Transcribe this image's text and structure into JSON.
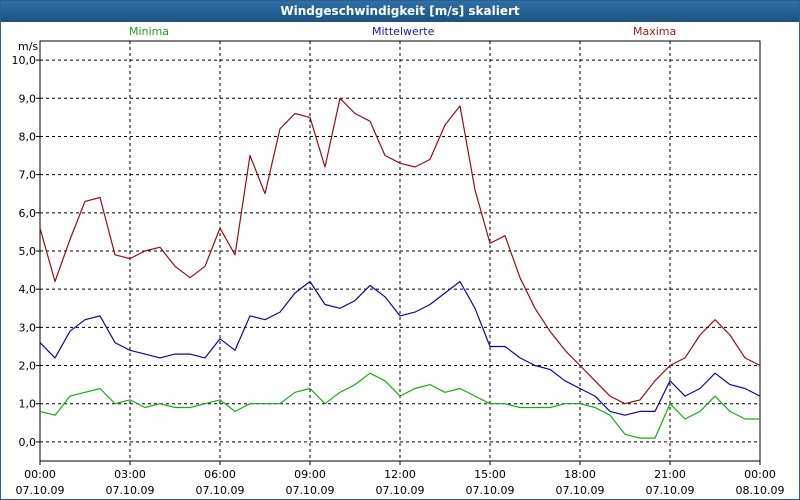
{
  "title": "Windgeschwindigkeit [m/s] skaliert",
  "colors": {
    "min": "#11b011",
    "avg": "#0a0aa0",
    "max": "#9a0e0e",
    "grid": "#000000",
    "title_bg": "#1c527f"
  },
  "chart_data": {
    "type": "line",
    "title": "Windgeschwindigkeit [m/s] skaliert",
    "ylabel": "m/s",
    "xlabel": "",
    "ylim": [
      -0.5,
      10.5
    ],
    "xlim": [
      0,
      24
    ],
    "grid": true,
    "legend": [
      "Minima",
      "Mittelwerte",
      "Maxima"
    ],
    "legend_position": "top",
    "y_ticks": [
      "0,0",
      "1,0",
      "2,0",
      "3,0",
      "4,0",
      "5,0",
      "6,0",
      "7,0",
      "8,0",
      "9,0",
      "10,0"
    ],
    "x_ticks": [
      {
        "time": "00:00",
        "date": "07.10.09"
      },
      {
        "time": "03:00",
        "date": "07.10.09"
      },
      {
        "time": "06:00",
        "date": "07.10.09"
      },
      {
        "time": "09:00",
        "date": "07.10.09"
      },
      {
        "time": "12:00",
        "date": "07.10.09"
      },
      {
        "time": "15:00",
        "date": "07.10.09"
      },
      {
        "time": "18:00",
        "date": "07.10.09"
      },
      {
        "time": "21:00",
        "date": "07.10.09"
      },
      {
        "time": "00:00",
        "date": "08.10.09"
      }
    ],
    "x": [
      0,
      0.5,
      1,
      1.5,
      2,
      2.5,
      3,
      3.5,
      4,
      4.5,
      5,
      5.5,
      6,
      6.5,
      7,
      7.5,
      8,
      8.5,
      9,
      9.5,
      10,
      10.5,
      11,
      11.5,
      12,
      12.5,
      13,
      13.5,
      14,
      14.5,
      15,
      15.5,
      16,
      16.5,
      17,
      17.5,
      18,
      18.5,
      19,
      19.5,
      20,
      20.5,
      21,
      21.5,
      22,
      22.5,
      23,
      23.5,
      24
    ],
    "series": [
      {
        "name": "Minima",
        "values": [
          0.8,
          0.7,
          1.2,
          1.3,
          1.4,
          1.0,
          1.1,
          0.9,
          1.0,
          0.9,
          0.9,
          1.0,
          1.1,
          0.8,
          1.0,
          1.0,
          1.0,
          1.3,
          1.4,
          1.0,
          1.3,
          1.5,
          1.8,
          1.6,
          1.2,
          1.4,
          1.5,
          1.3,
          1.4,
          1.2,
          1.0,
          1.0,
          0.9,
          0.9,
          0.9,
          1.0,
          1.0,
          0.9,
          0.7,
          0.2,
          0.1,
          0.1,
          1.0,
          0.6,
          0.8,
          1.2,
          0.8,
          0.6,
          0.6
        ]
      },
      {
        "name": "Mittelwerte",
        "values": [
          2.6,
          2.2,
          2.9,
          3.2,
          3.3,
          2.6,
          2.4,
          2.3,
          2.2,
          2.3,
          2.3,
          2.2,
          2.7,
          2.4,
          3.3,
          3.2,
          3.4,
          3.9,
          4.2,
          3.6,
          3.5,
          3.7,
          4.1,
          3.8,
          3.3,
          3.4,
          3.6,
          3.9,
          4.2,
          3.5,
          2.5,
          2.5,
          2.2,
          2.0,
          1.9,
          1.6,
          1.4,
          1.2,
          0.8,
          0.7,
          0.8,
          0.8,
          1.6,
          1.2,
          1.4,
          1.8,
          1.5,
          1.4,
          1.2
        ]
      },
      {
        "name": "Maxima",
        "values": [
          5.6,
          4.2,
          5.3,
          6.3,
          6.4,
          4.9,
          4.8,
          5.0,
          5.1,
          4.6,
          4.3,
          4.6,
          5.6,
          4.9,
          7.5,
          6.5,
          8.2,
          8.6,
          8.5,
          7.2,
          9.0,
          8.6,
          8.4,
          7.5,
          7.3,
          7.2,
          7.4,
          8.3,
          8.8,
          6.6,
          5.2,
          5.4,
          4.3,
          3.5,
          2.9,
          2.4,
          2.0,
          1.6,
          1.2,
          1.0,
          1.1,
          1.6,
          2.0,
          2.2,
          2.8,
          3.2,
          2.8,
          2.2,
          2.0
        ]
      }
    ]
  }
}
